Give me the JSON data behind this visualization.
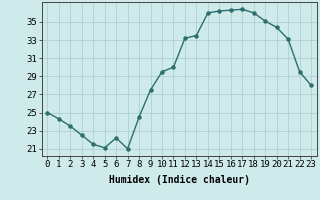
{
  "x": [
    0,
    1,
    2,
    3,
    4,
    5,
    6,
    7,
    8,
    9,
    10,
    11,
    12,
    13,
    14,
    15,
    16,
    17,
    18,
    19,
    20,
    21,
    22,
    23
  ],
  "y": [
    25.0,
    24.3,
    23.5,
    22.5,
    21.5,
    21.1,
    22.2,
    21.0,
    24.5,
    27.5,
    29.5,
    30.0,
    33.2,
    33.5,
    36.0,
    36.2,
    36.3,
    36.4,
    36.0,
    35.1,
    34.4,
    33.1,
    29.5,
    28.0
  ],
  "line_color": "#2d6e6e",
  "bg_color": "#ceeaea",
  "grid_color": "#aed0d0",
  "xlabel": "Humidex (Indice chaleur)",
  "yticks": [
    21,
    23,
    25,
    27,
    29,
    31,
    33,
    35
  ],
  "ylim": [
    20.2,
    37.2
  ],
  "xlim": [
    -0.5,
    23.5
  ],
  "label_fontsize": 7,
  "tick_fontsize": 6.5
}
